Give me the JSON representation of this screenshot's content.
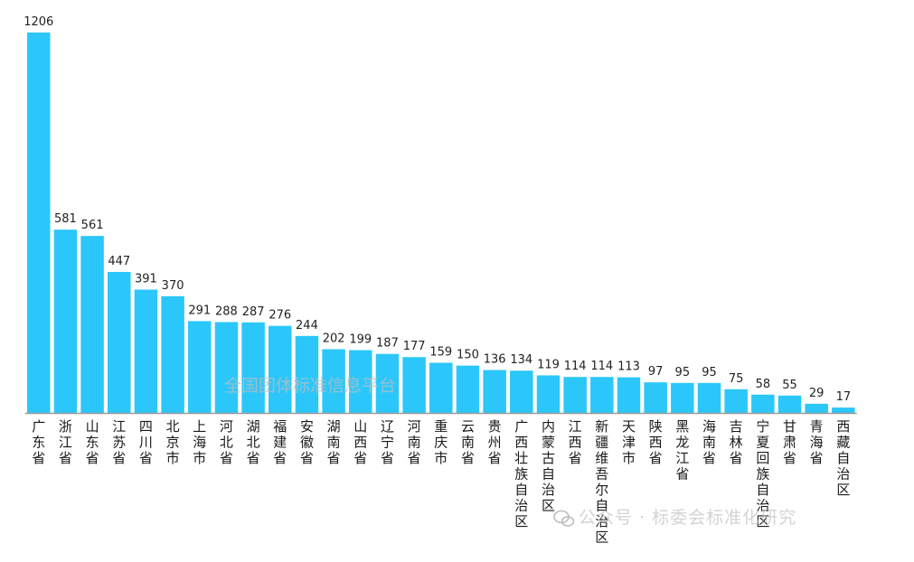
{
  "chart_data": {
    "type": "bar",
    "title": "",
    "xlabel": "",
    "ylabel": "",
    "ylim": [
      0,
      1206
    ],
    "grid": false,
    "legend": "none",
    "bar_color": "#2bc7fb",
    "axis_color": "#9a9a9a",
    "categories": [
      "广东省",
      "浙江省",
      "山东省",
      "江苏省",
      "四川省",
      "北京市",
      "上海市",
      "河北省",
      "湖北省",
      "福建省",
      "安徽省",
      "湖南省",
      "山西省",
      "辽宁省",
      "河南省",
      "重庆市",
      "云南省",
      "贵州省",
      "广西壮族自治区",
      "内蒙古自治区",
      "江西省",
      "新疆维吾尔自治区",
      "天津市",
      "陕西省",
      "黑龙江省",
      "海南省",
      "吉林省",
      "宁夏回族自治区",
      "甘肃省",
      "青海省",
      "西藏自治区"
    ],
    "values": [
      1206,
      581,
      561,
      447,
      391,
      370,
      291,
      288,
      287,
      276,
      244,
      202,
      199,
      187,
      177,
      159,
      150,
      136,
      134,
      119,
      114,
      114,
      113,
      97,
      95,
      95,
      75,
      58,
      55,
      29,
      17
    ]
  },
  "watermarks": {
    "center": "全国团体标准信息平台",
    "bottom": "公众号 · 标委会标准化研究"
  }
}
